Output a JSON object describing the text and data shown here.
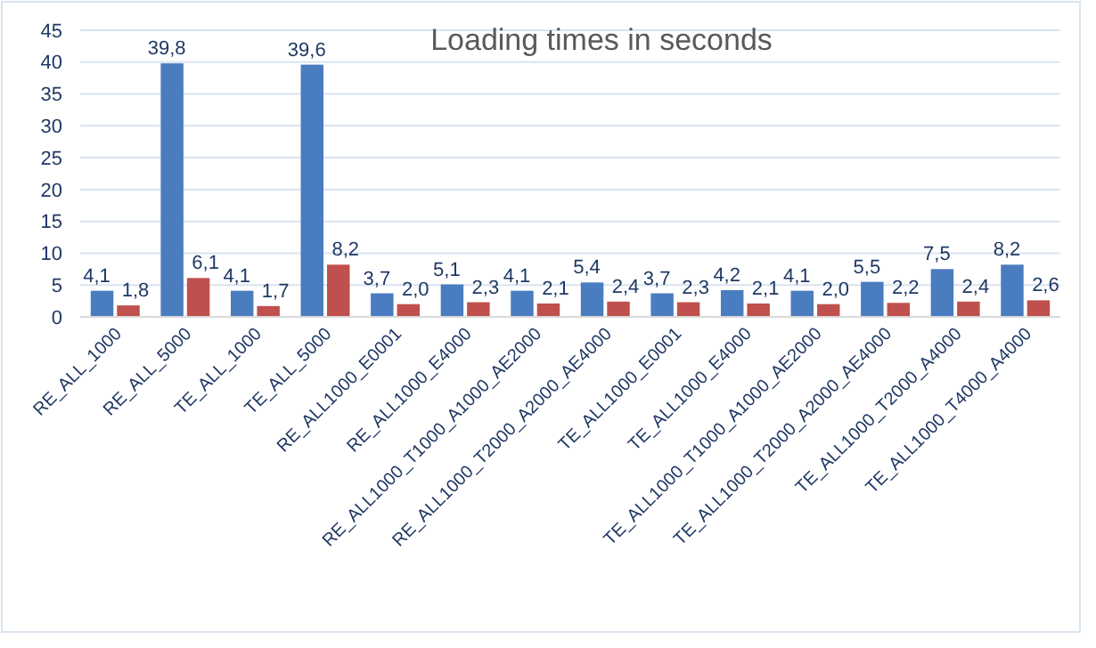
{
  "chart_data": {
    "type": "bar",
    "title": "Loading times in seconds",
    "categories": [
      "RE_ALL_1000",
      "RE_ALL_5000",
      "TE_ALL_1000",
      "TE_ALL_5000",
      "RE_ALL1000_E0001",
      "RE_ALL1000_E4000",
      "RE_ALL1000_T1000_A1000_AE2000",
      "RE_ALL1000_T2000_A2000_AE4000",
      "TE_ALL1000_E0001",
      "TE_ALL1000_E4000",
      "TE_ALL1000_T1000_A1000_AE2000",
      "TE_ALL1000_T2000_A2000_AE4000",
      "TE_ALL1000_T2000_A4000",
      "TE_ALL1000_T4000_A4000"
    ],
    "series": [
      {
        "color": "#4a7cc0",
        "values": [
          4.1,
          39.8,
          4.1,
          39.6,
          3.7,
          5.1,
          4.1,
          5.4,
          3.7,
          4.2,
          4.1,
          5.5,
          7.5,
          8.2
        ],
        "value_labels": [
          "4,1",
          "39,8",
          "4,1",
          "39,6",
          "3,7",
          "5,1",
          "4,1",
          "5,4",
          "3,7",
          "4,2",
          "4,1",
          "5,5",
          "7,5",
          "8,2"
        ]
      },
      {
        "color": "#c0504d",
        "values": [
          1.8,
          6.1,
          1.7,
          8.2,
          2.0,
          2.3,
          2.1,
          2.4,
          2.3,
          2.1,
          2.0,
          2.2,
          2.4,
          2.6
        ],
        "value_labels": [
          "1,8",
          "6,1",
          "1,7",
          "8,2",
          "2,0",
          "2,3",
          "2,1",
          "2,4",
          "2,3",
          "2,1",
          "2,0",
          "2,2",
          "2,4",
          "2,6"
        ]
      }
    ],
    "ylim": [
      0,
      45
    ],
    "yticks": [
      0,
      5,
      10,
      15,
      20,
      25,
      30,
      35,
      40,
      45
    ],
    "grid": "y"
  }
}
